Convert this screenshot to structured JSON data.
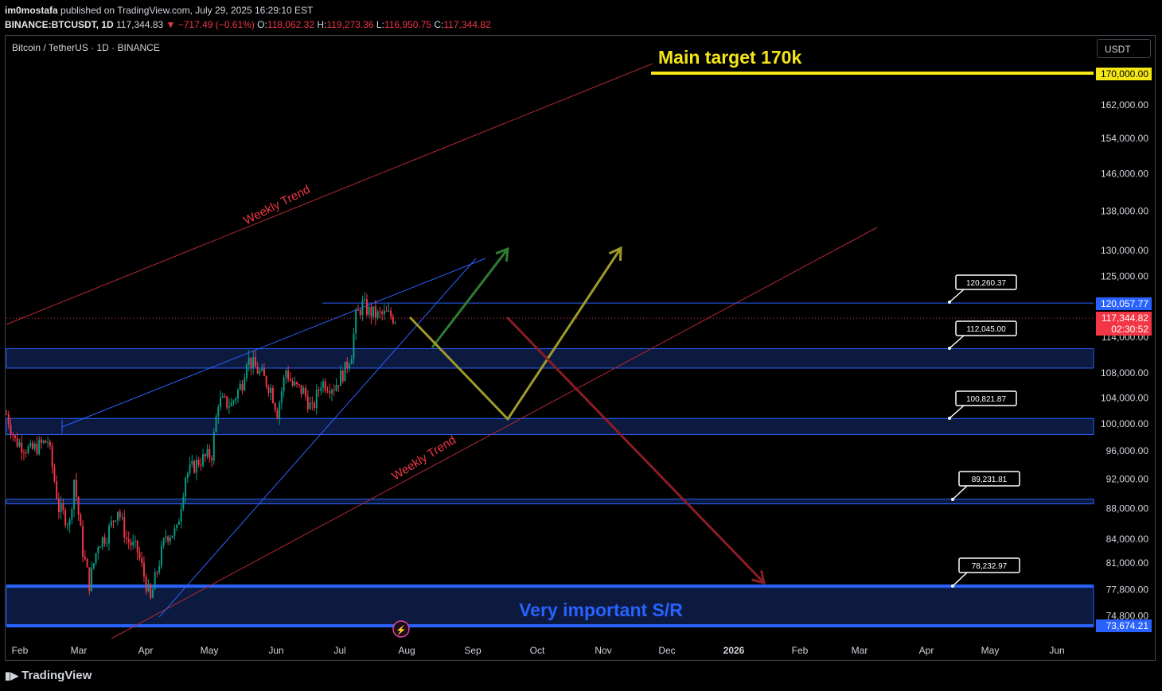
{
  "header": {
    "author": "im0mostafa",
    "published": "published on TradingView.com, July 29, 2025 16:29:10 EST",
    "symbol": "BINANCE:BTCUSDT, 1D",
    "last": "117,344.83",
    "change": "▼ −717.49 (−0.61%)",
    "o_label": "O:",
    "o": "118,062.32",
    "h_label": "H:",
    "h": "119,273.36",
    "l_label": "L:",
    "l": "116,950.75",
    "c_label": "C:",
    "c": "117,344.82"
  },
  "symbol_title": "Bitcoin / TetherUS · 1D · BINANCE",
  "currency_button": "USDT",
  "footer_brand": "TradingView",
  "colors": {
    "up": "#089981",
    "down": "#f23645",
    "zone": "#2962ff",
    "zone_fill": "#0c1a3f",
    "trend": "#b22833",
    "target": "#f5e616",
    "arrow_up1": "#2e7d32",
    "arrow_olive": "#a09a2a",
    "arrow_red": "#8c1c25"
  },
  "chart_data": {
    "type": "candlestick",
    "title": "Bitcoin / TetherUS · 1D · BINANCE",
    "y_scale": "log",
    "ylim": [
      72400,
      176000
    ],
    "y_ticks": [
      162000,
      154000,
      146000,
      138000,
      130000,
      125000,
      114000,
      108000,
      104000,
      100000,
      96000,
      92000,
      88000,
      84000,
      81000,
      77800,
      74800
    ],
    "y_tick_labels": [
      "162,000.00",
      "154,000.00",
      "146,000.00",
      "138,000.00",
      "130,000.00",
      "125,000.00",
      "114,000.00",
      "108,000.00",
      "104,000.00",
      "100,000.00",
      "96,000.00",
      "92,000.00",
      "88,000.00",
      "84,000.00",
      "81,000.00",
      "77,800.00",
      "74,800.00"
    ],
    "x_tick_labels": [
      "Feb",
      "Mar",
      "Apr",
      "May",
      "Jun",
      "Jul",
      "Aug",
      "Sep",
      "Oct",
      "Nov",
      "Dec",
      "2026",
      "Feb",
      "Mar",
      "Apr",
      "May",
      "Jun"
    ],
    "price_path": [
      [
        "2025-02-01",
        101500
      ],
      [
        "2025-02-05",
        97500
      ],
      [
        "2025-02-12",
        96000
      ],
      [
        "2025-02-20",
        97500
      ],
      [
        "2025-02-25",
        88000
      ],
      [
        "2025-03-02",
        86000
      ],
      [
        "2025-03-04",
        92000
      ],
      [
        "2025-03-08",
        82500
      ],
      [
        "2025-03-11",
        78500
      ],
      [
        "2025-03-15",
        83500
      ],
      [
        "2025-03-19",
        84500
      ],
      [
        "2025-03-24",
        88000
      ],
      [
        "2025-03-28",
        84000
      ],
      [
        "2025-04-02",
        82500
      ],
      [
        "2025-04-06",
        78500
      ],
      [
        "2025-04-08",
        76500
      ],
      [
        "2025-04-10",
        79000
      ],
      [
        "2025-04-15",
        84500
      ],
      [
        "2025-04-20",
        85000
      ],
      [
        "2025-04-24",
        92500
      ],
      [
        "2025-04-30",
        94500
      ],
      [
        "2025-05-06",
        95500
      ],
      [
        "2025-05-09",
        103500
      ],
      [
        "2025-05-15",
        103000
      ],
      [
        "2025-05-20",
        106500
      ],
      [
        "2025-05-22",
        110500
      ],
      [
        "2025-05-28",
        108000
      ],
      [
        "2025-06-02",
        105500
      ],
      [
        "2025-06-05",
        101800
      ],
      [
        "2025-06-09",
        108500
      ],
      [
        "2025-06-12",
        106000
      ],
      [
        "2025-06-17",
        105000
      ],
      [
        "2025-06-21",
        102000
      ],
      [
        "2025-06-25",
        106500
      ],
      [
        "2025-07-01",
        105800
      ],
      [
        "2025-07-06",
        108500
      ],
      [
        "2025-07-09",
        111500
      ],
      [
        "2025-07-11",
        117500
      ],
      [
        "2025-07-14",
        119800
      ],
      [
        "2025-07-17",
        118500
      ],
      [
        "2025-07-21",
        117800
      ],
      [
        "2025-07-25",
        118000
      ],
      [
        "2025-07-29",
        117344.82
      ]
    ],
    "horizontal_levels": [
      {
        "label": "170,000.00",
        "value": 170000
      },
      {
        "label": "120,260.37",
        "value": 120260.37
      },
      {
        "label": "120,057.77",
        "value": 120057.77
      },
      {
        "label": "117,344.82",
        "value": 117344.82
      },
      {
        "label": "112,045.00",
        "value": 112045.0
      },
      {
        "label": "100,821.87",
        "value": 100821.87
      },
      {
        "label": "89,231.81",
        "value": 89231.81
      },
      {
        "label": "78,232.97",
        "value": 78232.97
      },
      {
        "label": "73,674.21",
        "value": 73674.21
      }
    ],
    "zones": [
      {
        "low": 108800,
        "high": 112045
      },
      {
        "low": 98400,
        "high": 100821.87
      },
      {
        "low": 88600,
        "high": 89231.81
      },
      {
        "low": 73674.21,
        "high": 78232.97
      }
    ],
    "annotations": {
      "target_text": "Main target 170k",
      "sr_text": "Very important S/R",
      "trend_upper": "Weekly Trend",
      "trend_lower": "Weekly Trend",
      "countdown": "02:30:52"
    }
  }
}
